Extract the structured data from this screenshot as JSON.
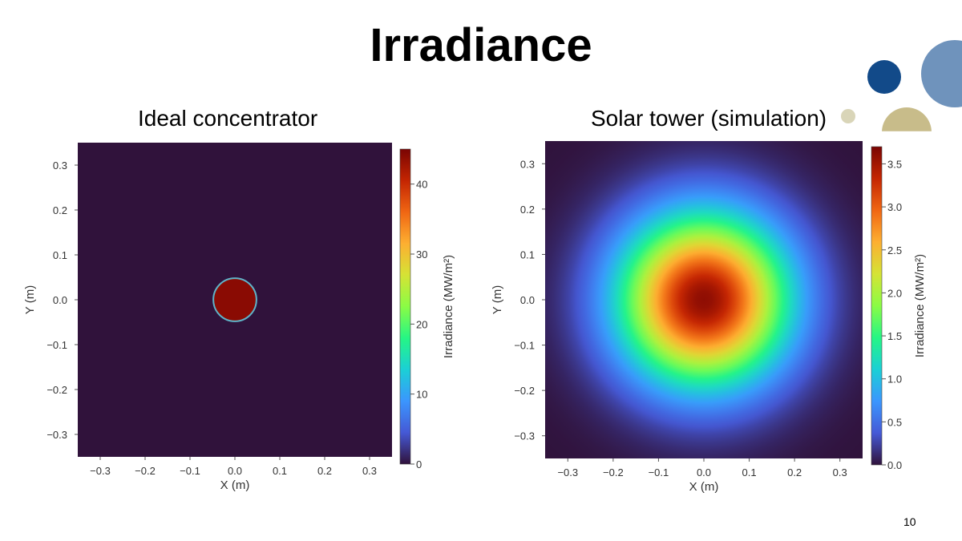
{
  "slide": {
    "title": "Irradiance",
    "page_number": "10"
  },
  "decoration": {
    "circle_colors": [
      "#124a89",
      "#6f93bc",
      "#d9d5b8",
      "#c8bc8a"
    ]
  },
  "chart_data": [
    {
      "type": "heatmap",
      "title": "Ideal concentrator",
      "xlabel": "X (m)",
      "ylabel": "Y (m)",
      "xlim": [
        -0.35,
        0.35
      ],
      "ylim": [
        -0.35,
        0.35
      ],
      "x_ticks": [
        -0.3,
        -0.2,
        -0.1,
        0.0,
        0.1,
        0.2,
        0.3
      ],
      "x_tick_labels": [
        "−0.3",
        "−0.2",
        "−0.1",
        "0.0",
        "0.1",
        "0.2",
        "0.3"
      ],
      "y_ticks": [
        0.3,
        0.2,
        0.1,
        0.0,
        -0.1,
        -0.2,
        -0.3
      ],
      "y_tick_labels": [
        "0.3",
        "0.2",
        "0.1",
        "0.0",
        "−0.1",
        "−0.2",
        "−0.3"
      ],
      "grid": false,
      "colormap": "turbo",
      "distribution": "uniform disk",
      "disk_center": [
        0.0,
        0.0
      ],
      "disk_radius": 0.048,
      "disk_value": 44,
      "background_value": 0,
      "colorbar": {
        "label": "Irradiance (MW/m²)",
        "range": [
          0,
          45
        ],
        "ticks": [
          0,
          10,
          20,
          30,
          40
        ],
        "tick_labels": [
          "0",
          "10",
          "20",
          "30",
          "40"
        ]
      }
    },
    {
      "type": "heatmap",
      "title": "Solar tower (simulation)",
      "xlabel": "X (m)",
      "ylabel": "Y (m)",
      "xlim": [
        -0.35,
        0.35
      ],
      "ylim": [
        -0.35,
        0.35
      ],
      "x_ticks": [
        -0.3,
        -0.2,
        -0.1,
        0.0,
        0.1,
        0.2,
        0.3
      ],
      "x_tick_labels": [
        "−0.3",
        "−0.2",
        "−0.1",
        "0.0",
        "0.1",
        "0.2",
        "0.3"
      ],
      "y_ticks": [
        0.3,
        0.2,
        0.1,
        0.0,
        -0.1,
        -0.2,
        -0.3
      ],
      "y_tick_labels": [
        "0.3",
        "0.2",
        "0.1",
        "0.0",
        "−0.1",
        "−0.2",
        "−0.3"
      ],
      "grid": false,
      "colormap": "turbo",
      "distribution": "gaussian",
      "peak_center": [
        0.0,
        0.0
      ],
      "peak_value": 3.6,
      "sigma": 0.13,
      "colorbar": {
        "label": "Irradiance (MW/m²)",
        "range": [
          0,
          3.7
        ],
        "ticks": [
          0.0,
          0.5,
          1.0,
          1.5,
          2.0,
          2.5,
          3.0,
          3.5
        ],
        "tick_labels": [
          "0.0",
          "0.5",
          "1.0",
          "1.5",
          "2.0",
          "2.5",
          "3.0",
          "3.5"
        ]
      }
    }
  ]
}
